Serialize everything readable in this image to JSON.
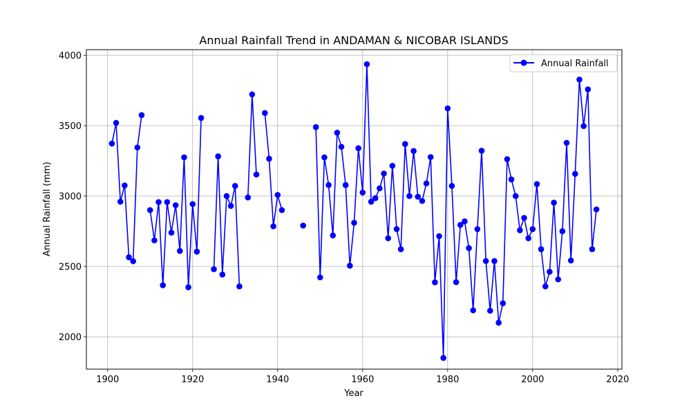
{
  "chart_data": {
    "type": "line",
    "title": "Annual Rainfall Trend in ANDAMAN & NICOBAR ISLANDS",
    "xlabel": "Year",
    "ylabel": "Annual Rainfall (mm)",
    "xlim": [
      1895,
      2021
    ],
    "ylim": [
      1770,
      4040
    ],
    "xticks": [
      1900,
      1920,
      1940,
      1960,
      1980,
      2000,
      2020
    ],
    "yticks": [
      2000,
      2500,
      3000,
      3500,
      4000
    ],
    "grid": true,
    "legend_position": "top-right",
    "series": [
      {
        "name": "Annual Rainfall",
        "color": "#0000ff",
        "marker": "circle",
        "points": [
          [
            1901,
            3373
          ],
          [
            1902,
            3520
          ],
          [
            1903,
            2960
          ],
          [
            1904,
            3075
          ],
          [
            1905,
            2565
          ],
          [
            1906,
            2537
          ],
          [
            1907,
            3345
          ],
          [
            1908,
            3575
          ],
          [
            1910,
            2900
          ],
          [
            1911,
            2685
          ],
          [
            1912,
            2957
          ],
          [
            1913,
            2366
          ],
          [
            1914,
            2957
          ],
          [
            1915,
            2740
          ],
          [
            1916,
            2935
          ],
          [
            1917,
            2610
          ],
          [
            1918,
            3275
          ],
          [
            1919,
            2352
          ],
          [
            1920,
            2943
          ],
          [
            1921,
            2605
          ],
          [
            1922,
            3555
          ],
          [
            1925,
            2480
          ],
          [
            1926,
            3282
          ],
          [
            1927,
            2442
          ],
          [
            1928,
            3000
          ],
          [
            1929,
            2930
          ],
          [
            1930,
            3072
          ],
          [
            1931,
            2358
          ],
          [
            1933,
            2990
          ],
          [
            1934,
            3722
          ],
          [
            1935,
            3153
          ],
          [
            1937,
            3590
          ],
          [
            1938,
            3265
          ],
          [
            1939,
            2785
          ],
          [
            1940,
            3008
          ],
          [
            1941,
            2900
          ],
          [
            1946,
            2790
          ],
          [
            1949,
            3490
          ],
          [
            1950,
            2422
          ],
          [
            1951,
            3275
          ],
          [
            1952,
            3078
          ],
          [
            1953,
            2720
          ],
          [
            1954,
            3450
          ],
          [
            1955,
            3350
          ],
          [
            1956,
            3078
          ],
          [
            1957,
            2505
          ],
          [
            1958,
            2810
          ],
          [
            1959,
            3340
          ],
          [
            1960,
            3025
          ],
          [
            1961,
            3937
          ],
          [
            1962,
            2960
          ],
          [
            1963,
            2985
          ],
          [
            1964,
            3055
          ],
          [
            1965,
            3160
          ],
          [
            1966,
            2700
          ],
          [
            1967,
            3215
          ],
          [
            1968,
            2765
          ],
          [
            1969,
            2622
          ],
          [
            1970,
            3370
          ],
          [
            1971,
            3000
          ],
          [
            1972,
            3320
          ],
          [
            1973,
            2995
          ],
          [
            1974,
            2965
          ],
          [
            1975,
            3090
          ],
          [
            1976,
            3277
          ],
          [
            1977,
            2387
          ],
          [
            1978,
            2715
          ],
          [
            1979,
            1850
          ],
          [
            1980,
            3623
          ],
          [
            1981,
            3072
          ],
          [
            1982,
            2388
          ],
          [
            1983,
            2795
          ],
          [
            1984,
            2820
          ],
          [
            1985,
            2630
          ],
          [
            1986,
            2188
          ],
          [
            1987,
            2765
          ],
          [
            1988,
            3322
          ],
          [
            1989,
            2538
          ],
          [
            1990,
            2185
          ],
          [
            1991,
            2538
          ],
          [
            1992,
            2100
          ],
          [
            1993,
            2238
          ],
          [
            1994,
            3262
          ],
          [
            1995,
            3118
          ],
          [
            1996,
            3000
          ],
          [
            1997,
            2757
          ],
          [
            1998,
            2845
          ],
          [
            1999,
            2700
          ],
          [
            2000,
            2765
          ],
          [
            2001,
            3085
          ],
          [
            2002,
            2622
          ],
          [
            2003,
            2358
          ],
          [
            2004,
            2462
          ],
          [
            2005,
            2953
          ],
          [
            2006,
            2408
          ],
          [
            2007,
            2750
          ],
          [
            2008,
            3378
          ],
          [
            2009,
            2542
          ],
          [
            2010,
            3158
          ],
          [
            2011,
            3828
          ],
          [
            2012,
            3497
          ],
          [
            2013,
            3758
          ],
          [
            2014,
            2622
          ],
          [
            2015,
            2905
          ]
        ]
      }
    ]
  }
}
